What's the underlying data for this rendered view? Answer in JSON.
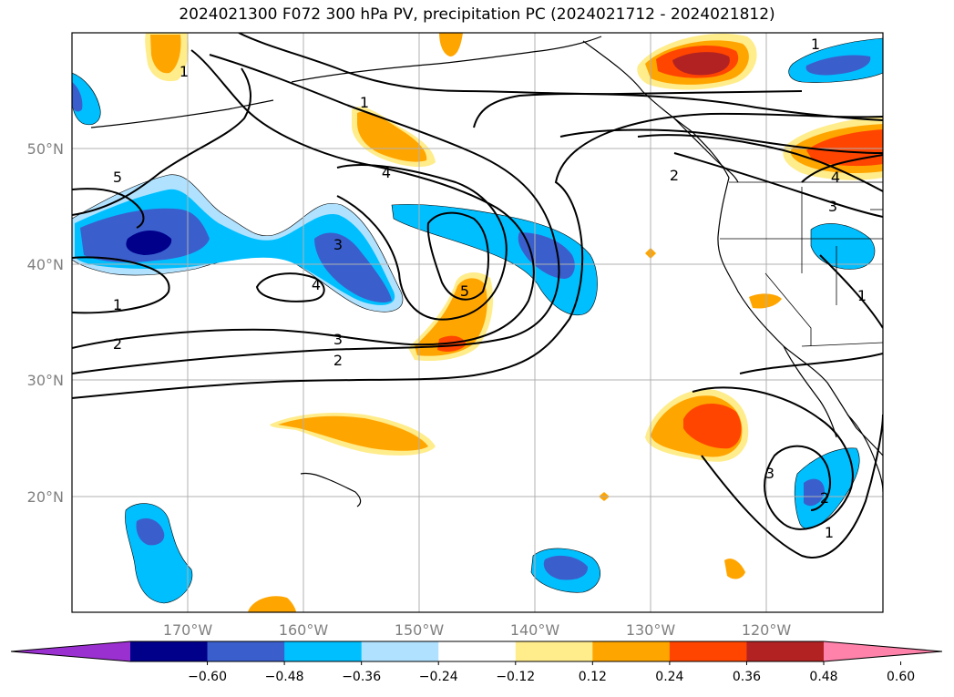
{
  "title": "2024021300 F072 300 hPa PV, precipitation PC (2024021712 - 2024021812)",
  "lat_labels": [
    "50°N",
    "40°N",
    "30°N",
    "20°N"
  ],
  "lon_labels": [
    "170°W",
    "160°W",
    "150°W",
    "140°W",
    "130°W",
    "120°W"
  ],
  "colorbar": {
    "ticks": [
      "−0.60",
      "−0.48",
      "−0.36",
      "−0.24",
      "−0.12",
      "0.12",
      "0.24",
      "0.36",
      "0.48",
      "0.60"
    ],
    "colors": [
      "#9b30d0",
      "#00008b",
      "#3a5fcd",
      "#00bfff",
      "#b0e2ff",
      "#ffffff",
      "#ffec8b",
      "#ffa500",
      "#ff4500",
      "#b22222",
      "#ff82ab"
    ]
  },
  "contour_labels": [
    "1",
    "5",
    "1",
    "2",
    "4",
    "3",
    "4",
    "5",
    "3",
    "2",
    "2",
    "1",
    "4",
    "3",
    "1",
    "3",
    "2",
    "1",
    "1"
  ],
  "colors": {
    "frame": "#000000",
    "grid": "#b0b0b0",
    "coast": "#000000"
  }
}
